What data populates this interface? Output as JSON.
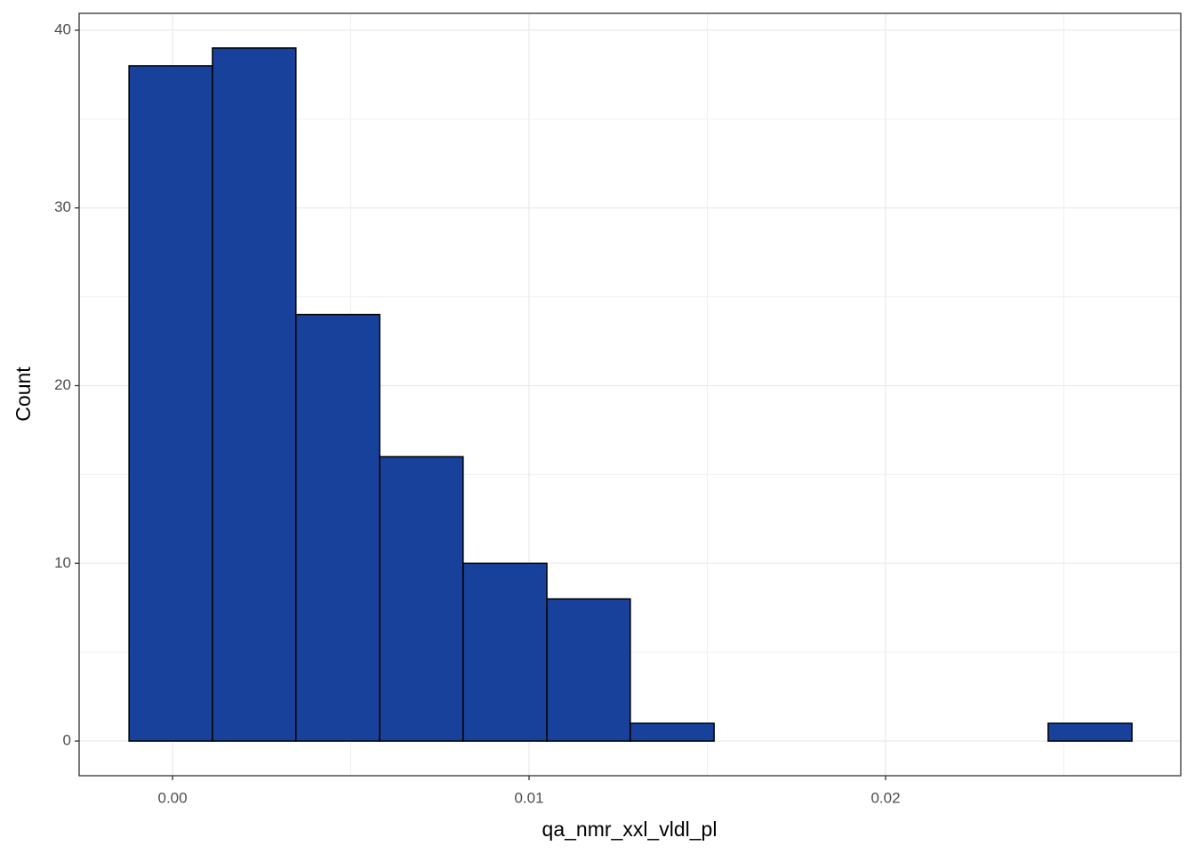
{
  "chart_data": {
    "type": "histogram",
    "x_label": "qa_nmr_xxl_vldl_pl",
    "y_label": "Count",
    "bins": [
      -0.00122,
      0.00112,
      0.00346,
      0.00581,
      0.00815,
      0.0105,
      0.01284,
      0.01519,
      0.01753,
      0.01988,
      0.02222,
      0.02456,
      0.02691
    ],
    "counts": [
      38,
      39,
      24,
      16,
      10,
      8,
      1,
      0,
      0,
      0,
      0,
      1
    ],
    "color": "#17419a",
    "edge_color": "#000000",
    "xlim": [
      -0.00262,
      0.02828
    ],
    "ylim": [
      -1.95,
      40.95
    ],
    "xticks": [
      {
        "value": 0,
        "label": "0.00"
      },
      0.01,
      0.02
    ],
    "yticks": [
      0,
      10,
      20,
      30,
      40
    ],
    "grid": true
  }
}
